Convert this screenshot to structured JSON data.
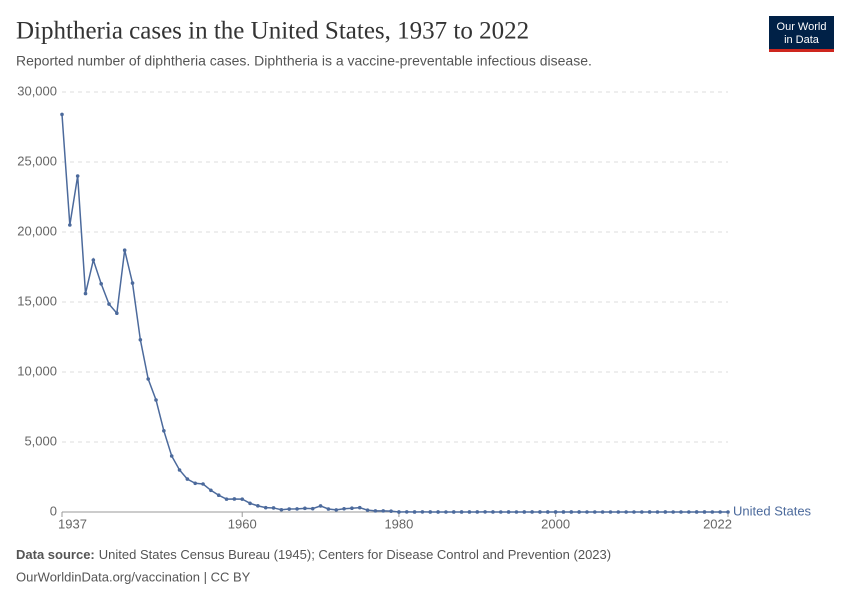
{
  "chart_data": {
    "type": "line",
    "title": "Diphtheria cases in the United States, 1937 to 2022",
    "subtitle": "Reported number of diphtheria cases. Diphtheria is a vaccine-preventable infectious disease.",
    "logo": [
      "Our World",
      "in Data"
    ],
    "source_label": "Data source:",
    "source": "United States Census Bureau (1945); Centers for Disease Control and Prevention (2023)",
    "footer": "OurWorldinData.org/vaccination | CC BY",
    "x": [
      1937,
      1938,
      1939,
      1940,
      1941,
      1942,
      1943,
      1944,
      1945,
      1946,
      1947,
      1948,
      1949,
      1950,
      1951,
      1952,
      1953,
      1954,
      1955,
      1956,
      1957,
      1958,
      1959,
      1960,
      1961,
      1962,
      1963,
      1964,
      1965,
      1966,
      1967,
      1968,
      1969,
      1970,
      1971,
      1972,
      1973,
      1974,
      1975,
      1976,
      1977,
      1978,
      1979,
      1980,
      1981,
      1982,
      1983,
      1984,
      1985,
      1986,
      1987,
      1988,
      1989,
      1990,
      1991,
      1992,
      1993,
      1994,
      1995,
      1996,
      1997,
      1998,
      1999,
      2000,
      2001,
      2002,
      2003,
      2004,
      2005,
      2006,
      2007,
      2008,
      2009,
      2010,
      2011,
      2012,
      2013,
      2014,
      2015,
      2016,
      2017,
      2018,
      2019,
      2020,
      2021,
      2022
    ],
    "series": [
      {
        "name": "United States",
        "color": "#4c6a9c",
        "values": [
          28400,
          20500,
          24000,
          15600,
          18000,
          16300,
          14850,
          14200,
          18700,
          16350,
          12300,
          9500,
          8000,
          5800,
          4000,
          3000,
          2350,
          2050,
          2000,
          1550,
          1200,
          920,
          930,
          920,
          620,
          440,
          310,
          290,
          160,
          210,
          220,
          260,
          240,
          435,
          215,
          150,
          230,
          270,
          310,
          130,
          80,
          80,
          60,
          3,
          5,
          2,
          5,
          1,
          3,
          0,
          3,
          2,
          3,
          4,
          5,
          4,
          0,
          2,
          0,
          2,
          4,
          1,
          1,
          1,
          2,
          1,
          1,
          0,
          0,
          0,
          0,
          0,
          0,
          0,
          0,
          1,
          0,
          1,
          0,
          0,
          0,
          1,
          2,
          0,
          0,
          0
        ]
      }
    ],
    "xlim": [
      1937,
      2022
    ],
    "xticks": [
      1937,
      1960,
      1980,
      2000,
      2022
    ],
    "ylim": [
      0,
      30000
    ],
    "yticks": [
      0,
      {
        "value": 5000,
        "label": "5,000"
      },
      {
        "value": 10000,
        "label": "10,000"
      },
      {
        "value": 15000,
        "label": "15,000"
      },
      {
        "value": 20000,
        "label": "20,000"
      },
      {
        "value": 25000,
        "label": "25,000"
      },
      {
        "value": 30000,
        "label": "30,000"
      }
    ],
    "grid": true
  }
}
